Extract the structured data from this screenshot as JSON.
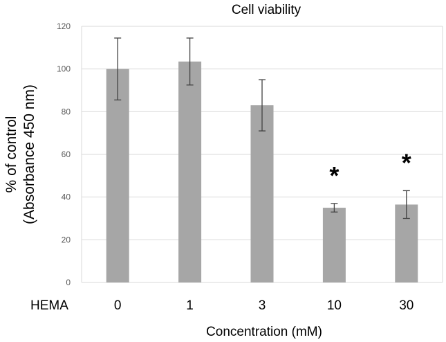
{
  "chart_data": {
    "type": "bar",
    "title": "Cell viability",
    "ylabel_line1": "% of control",
    "ylabel_line2": "(Absorbance 450 nm)",
    "xlabel": "Concentration (mM)",
    "category_prefix": "HEMA",
    "categories": [
      "0",
      "1",
      "3",
      "10",
      "30"
    ],
    "values": [
      100,
      103.5,
      83,
      35,
      36.5
    ],
    "errors": [
      14.5,
      11,
      12,
      2,
      6.5
    ],
    "significance": [
      "",
      "",
      "",
      "*",
      "*"
    ],
    "ylim": [
      0,
      120
    ],
    "yticks": [
      0,
      20,
      40,
      60,
      80,
      100,
      120
    ],
    "grid": true,
    "bar_color": "#a6a6a6",
    "grid_color": "#d9d9d9",
    "error_color": "#404040"
  }
}
